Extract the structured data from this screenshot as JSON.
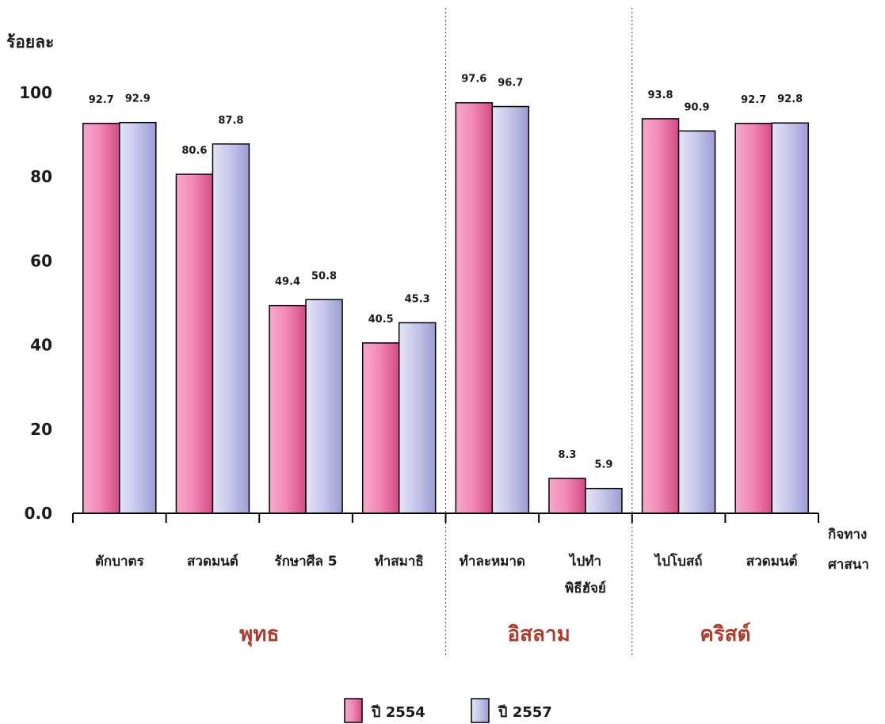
{
  "chart_data": {
    "type": "bar",
    "ylabel": "ร้อยละ",
    "xlabel_line1": "กิจทาง",
    "xlabel_line2": "ศาสนา",
    "ylim": [
      0,
      100
    ],
    "yticks": [
      "0.0",
      "20",
      "40",
      "60",
      "80",
      "100"
    ],
    "categories": [
      "ตักบาตร",
      "สวดมนต์",
      "รักษาศีล 5",
      "ทำสมาธิ",
      "ทำละหมาด",
      "ไปทำพิธีฮัจย์",
      "ไปโบสถ์",
      "สวดมนต์"
    ],
    "category_lines": [
      [
        "ตักบาตร"
      ],
      [
        "สวดมนต์"
      ],
      [
        "รักษาศีล 5"
      ],
      [
        "ทำสมาธิ"
      ],
      [
        "ทำละหมาด"
      ],
      [
        "ไปทำ",
        "พิธีฮัจย์"
      ],
      [
        "ไปโบสถ์"
      ],
      [
        "สวดมนต์"
      ]
    ],
    "groups": [
      {
        "name": "พุทธ",
        "start": 0,
        "end": 3
      },
      {
        "name": "อิสลาม",
        "start": 4,
        "end": 5
      },
      {
        "name": "คริสต์",
        "start": 6,
        "end": 7
      }
    ],
    "series": [
      {
        "name": "ปี 2554",
        "values": [
          92.7,
          80.6,
          49.4,
          40.5,
          97.6,
          8.3,
          93.8,
          92.7
        ]
      },
      {
        "name": "ปี 2557",
        "values": [
          92.9,
          87.8,
          50.8,
          45.3,
          96.7,
          5.9,
          90.9,
          92.8
        ]
      }
    ],
    "data_labels": [
      [
        "92.7",
        "80.6",
        "49.4",
        "40.5",
        "97.6",
        "8.3",
        "93.8",
        "92.7"
      ],
      [
        "92.9",
        "87.8",
        "50.8",
        "45.3",
        "96.7",
        "5.9",
        "90.9",
        "92.8"
      ]
    ],
    "colors": {
      "series1_light": "#f7a9cc",
      "series1_dark": "#d54a85",
      "series2_light": "#e4e4f6",
      "series2_dark": "#9c9cd4",
      "group_label": "#b03a2e",
      "separator": "#555555"
    },
    "legend_position": "bottom"
  }
}
